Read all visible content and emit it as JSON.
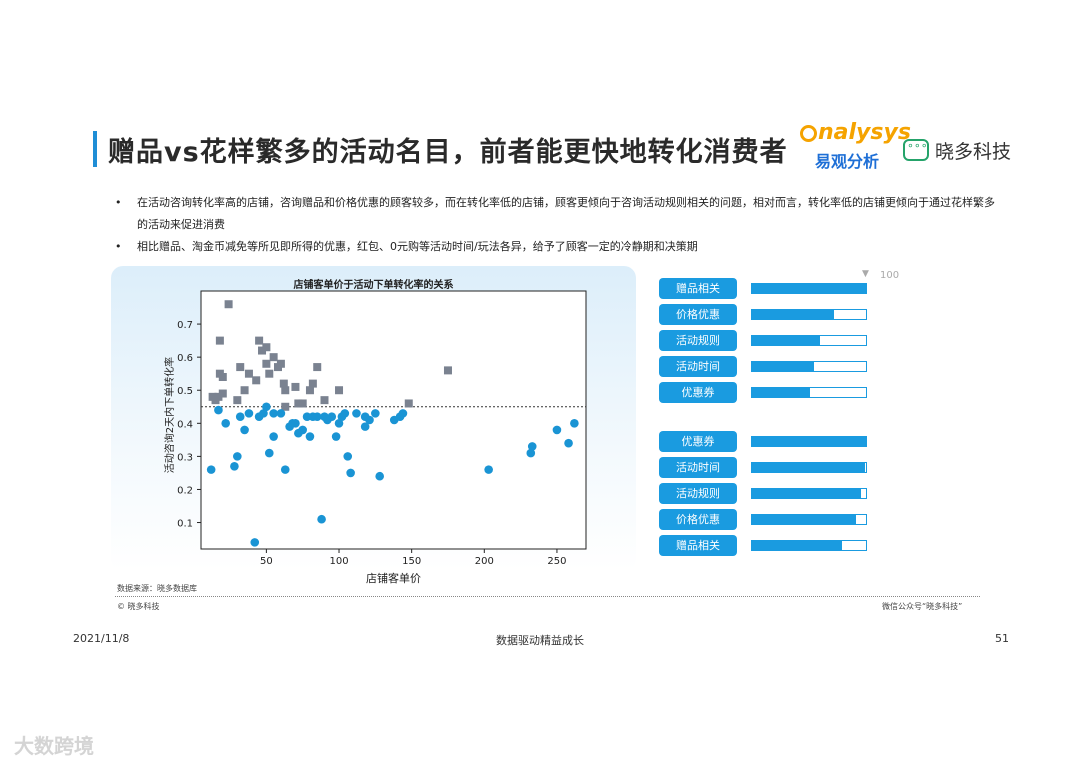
{
  "title": "赠品vs花样繁多的活动名目，前者能更快地转化消费者",
  "logos": {
    "analysys_text": "nalysys",
    "analysys_sub": "易观分析",
    "xiaoduo": "晓多科技"
  },
  "bullets": [
    "在活动咨询转化率高的店铺，咨询赠品和价格优惠的顾客较多，而在转化率低的店铺，顾客更倾向于咨询活动规则相关的问题，相对而言，转化率低的店铺更倾向于通过花样繁多的活动来促进消费",
    "相比赠品、淘金币减免等所见即所得的优惠，红包、0元购等活动时间/玩法各异，给予了顾客一定的冷静期和决策期"
  ],
  "chart_data": {
    "type": "scatter",
    "title": "店铺客单价于活动下单转化率的关系",
    "xlabel": "店铺客单价",
    "ylabel": "活动咨询2天内下单转化率",
    "x_ticks": [
      50,
      100,
      150,
      200,
      250
    ],
    "y_ticks": [
      "0.1",
      "0.2",
      "0.3",
      "0.4",
      "0.5",
      "0.6",
      "0.7"
    ],
    "xlim": [
      5,
      270
    ],
    "ylim": [
      0.02,
      0.8
    ],
    "threshold": 0.45,
    "colors": {
      "high": "#7a8290",
      "low": "#1a94d4"
    },
    "series": [
      {
        "marker": "square",
        "points": [
          [
            13,
            0.48
          ],
          [
            15,
            0.47
          ],
          [
            17,
            0.48
          ],
          [
            18,
            0.65
          ],
          [
            18,
            0.55
          ],
          [
            20,
            0.54
          ],
          [
            20,
            0.49
          ],
          [
            24,
            0.76
          ],
          [
            30,
            0.47
          ],
          [
            32,
            0.57
          ],
          [
            35,
            0.5
          ],
          [
            38,
            0.55
          ],
          [
            43,
            0.53
          ],
          [
            45,
            0.65
          ],
          [
            47,
            0.62
          ],
          [
            50,
            0.63
          ],
          [
            50,
            0.58
          ],
          [
            52,
            0.55
          ],
          [
            55,
            0.6
          ],
          [
            58,
            0.57
          ],
          [
            60,
            0.58
          ],
          [
            62,
            0.52
          ],
          [
            63,
            0.5
          ],
          [
            63,
            0.45
          ],
          [
            70,
            0.51
          ],
          [
            72,
            0.46
          ],
          [
            75,
            0.46
          ],
          [
            80,
            0.5
          ],
          [
            82,
            0.52
          ],
          [
            85,
            0.57
          ],
          [
            90,
            0.47
          ],
          [
            100,
            0.5
          ],
          [
            148,
            0.46
          ],
          [
            175,
            0.56
          ]
        ]
      },
      {
        "marker": "circle",
        "points": [
          [
            12,
            0.26
          ],
          [
            17,
            0.44
          ],
          [
            22,
            0.4
          ],
          [
            28,
            0.27
          ],
          [
            30,
            0.3
          ],
          [
            32,
            0.42
          ],
          [
            35,
            0.38
          ],
          [
            38,
            0.43
          ],
          [
            42,
            0.04
          ],
          [
            45,
            0.42
          ],
          [
            48,
            0.43
          ],
          [
            50,
            0.45
          ],
          [
            52,
            0.31
          ],
          [
            55,
            0.36
          ],
          [
            55,
            0.43
          ],
          [
            60,
            0.43
          ],
          [
            63,
            0.26
          ],
          [
            66,
            0.39
          ],
          [
            68,
            0.4
          ],
          [
            70,
            0.4
          ],
          [
            72,
            0.37
          ],
          [
            75,
            0.38
          ],
          [
            78,
            0.42
          ],
          [
            80,
            0.36
          ],
          [
            82,
            0.42
          ],
          [
            85,
            0.42
          ],
          [
            88,
            0.11
          ],
          [
            90,
            0.42
          ],
          [
            92,
            0.41
          ],
          [
            95,
            0.42
          ],
          [
            98,
            0.36
          ],
          [
            100,
            0.4
          ],
          [
            102,
            0.42
          ],
          [
            104,
            0.43
          ],
          [
            106,
            0.3
          ],
          [
            108,
            0.25
          ],
          [
            112,
            0.43
          ],
          [
            118,
            0.39
          ],
          [
            118,
            0.42
          ],
          [
            121,
            0.41
          ],
          [
            125,
            0.43
          ],
          [
            128,
            0.24
          ],
          [
            138,
            0.41
          ],
          [
            142,
            0.42
          ],
          [
            144,
            0.43
          ],
          [
            203,
            0.26
          ],
          [
            232,
            0.31
          ],
          [
            233,
            0.33
          ],
          [
            250,
            0.38
          ],
          [
            258,
            0.34
          ],
          [
            262,
            0.4
          ]
        ]
      }
    ]
  },
  "rank_max": "100",
  "rankings": [
    {
      "group": "high",
      "items": [
        {
          "label": "赠品相关",
          "value": 100
        },
        {
          "label": "价格优惠",
          "value": 72
        },
        {
          "label": "活动规则",
          "value": 60
        },
        {
          "label": "活动时间",
          "value": 54
        },
        {
          "label": "优惠券",
          "value": 51
        }
      ]
    },
    {
      "group": "low",
      "items": [
        {
          "label": "优惠券",
          "value": 100
        },
        {
          "label": "活动时间",
          "value": 99
        },
        {
          "label": "活动规则",
          "value": 96
        },
        {
          "label": "价格优惠",
          "value": 91
        },
        {
          "label": "赠品相关",
          "value": 79
        }
      ]
    }
  ],
  "source": "数据来源：晓多数据库",
  "copyright": "© 晓多科技",
  "wechat": "微信公众号“晓多科技”",
  "footer": {
    "date": "2021/11/8",
    "center": "数据驱动精益成长",
    "page": "51"
  },
  "watermark": "大数跨境"
}
